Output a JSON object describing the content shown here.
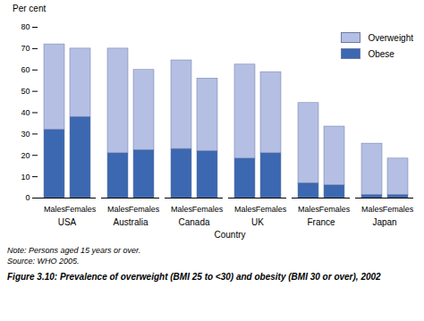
{
  "chart_data": {
    "type": "bar",
    "title": "Figure 3.10: Prevalence of overweight (BMI 25 to <30) and obesity (BMI 30 or over), 2002",
    "y_label": "Per cent",
    "x_label": "Country",
    "groups": [
      "USA",
      "Australia",
      "Canada",
      "UK",
      "France",
      "Japan"
    ],
    "categories": [
      "Males",
      "Females"
    ],
    "series": [
      {
        "name": "Obese",
        "color": "#3b68b0",
        "values": [
          [
            32,
            38
          ],
          [
            21,
            22.5
          ],
          [
            23,
            22
          ],
          [
            18.5,
            21
          ],
          [
            7,
            6
          ],
          [
            1.5,
            1.5
          ]
        ]
      },
      {
        "name": "Overweight",
        "color": "#b4bfe3",
        "values": [
          [
            40,
            32
          ],
          [
            49,
            37.5
          ],
          [
            41.5,
            34
          ],
          [
            44,
            38
          ],
          [
            37.5,
            27.5
          ],
          [
            24,
            17
          ]
        ]
      }
    ],
    "ylim": [
      0,
      80
    ],
    "yticks": [
      0,
      10,
      20,
      30,
      40,
      50,
      60,
      70,
      80
    ],
    "stacked": true,
    "grid": false,
    "legend": "top-right",
    "notes": [
      "Note: Persons aged 15 years or over.",
      "Source: WHO 2005."
    ]
  }
}
